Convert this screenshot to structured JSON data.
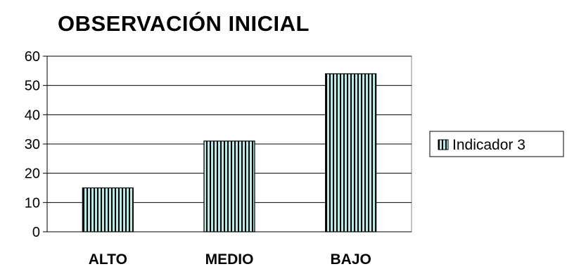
{
  "chart_data": {
    "type": "bar",
    "title": "OBSERVACIÓN INICIAL",
    "categories": [
      "ALTO",
      "MEDIO",
      "BAJO"
    ],
    "series": [
      {
        "name": "Indicador 3",
        "values": [
          15,
          31,
          54
        ]
      }
    ],
    "ylim": [
      0,
      60
    ],
    "yticks": [
      0,
      10,
      20,
      30,
      40,
      50,
      60
    ],
    "grid": true,
    "legend": "right",
    "colors": {
      "bar_fill": "#b6ece8",
      "bar_stripe": "#000000",
      "gridline": "#000000"
    }
  }
}
